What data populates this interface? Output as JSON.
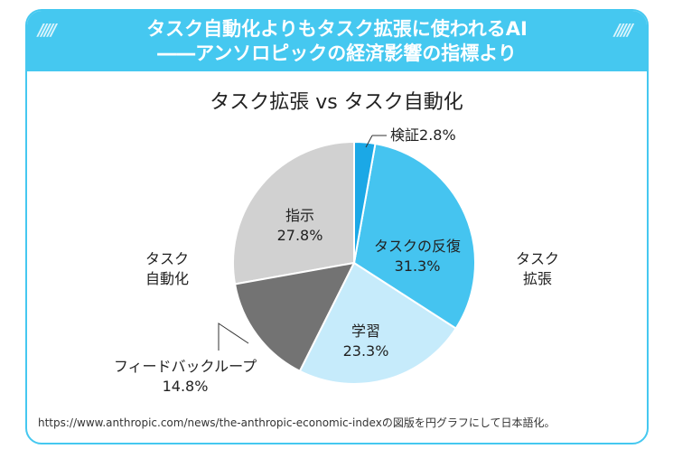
{
  "header": {
    "line1": "タスク自動化よりもタスク拡張に使われるAI",
    "line2": "――アンソロピックの経済影響の指標より",
    "deco": "/////"
  },
  "chart_data": {
    "type": "pie",
    "title": "タスク拡張 vs タスク自動化",
    "slices": [
      {
        "name": "検証",
        "value": 2.8,
        "label": "2.8%",
        "color": "#1ba8e6"
      },
      {
        "name": "タスクの反復",
        "value": 31.3,
        "label": "31.3%",
        "color": "#45c4f0"
      },
      {
        "name": "学習",
        "value": 23.3,
        "label": "23.3%",
        "color": "#c6ebfb"
      },
      {
        "name": "フィードバックループ",
        "value": 14.8,
        "label": "14.8%",
        "color": "#737373"
      },
      {
        "name": "指示",
        "value": 27.8,
        "label": "27.8%",
        "color": "#d1d1d1"
      }
    ],
    "groups": [
      {
        "label_1": "タスク",
        "label_2": "自動化"
      },
      {
        "label_1": "タスク",
        "label_2": "拡張"
      }
    ]
  },
  "source": "https://www.anthropic.com/news/the-anthropic-economic-indexの図版を円グラフにして日本語化。"
}
